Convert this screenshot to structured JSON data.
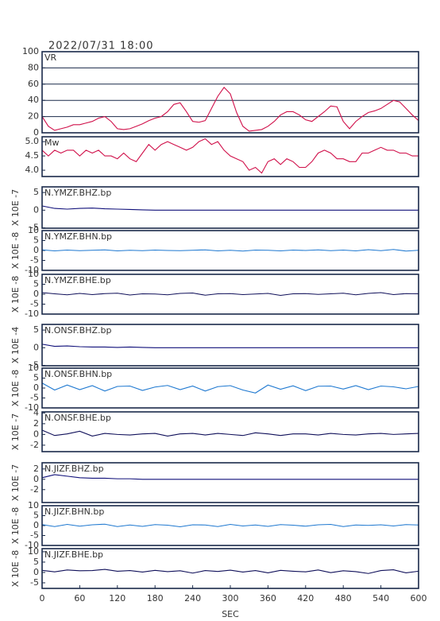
{
  "chart_data": [
    {
      "type": "line",
      "title": "2022/07/31 18:00",
      "xlim": [
        0,
        600
      ],
      "ylim": [
        0,
        100
      ],
      "yticks": [
        0,
        20,
        40,
        60,
        80,
        100
      ],
      "grid": true,
      "x": [
        0,
        10,
        20,
        30,
        40,
        50,
        60,
        70,
        80,
        90,
        100,
        110,
        120,
        130,
        140,
        150,
        160,
        170,
        180,
        190,
        200,
        210,
        220,
        230,
        240,
        250,
        260,
        270,
        280,
        290,
        300,
        310,
        320,
        330,
        340,
        350,
        360,
        370,
        380,
        390,
        400,
        410,
        420,
        430,
        440,
        450,
        460,
        470,
        480,
        490,
        500,
        510,
        520,
        530,
        540,
        550,
        560,
        570,
        580,
        590,
        600
      ],
      "series": [
        {
          "name": "VR",
          "color": "#d0104a",
          "values": [
            20,
            8,
            3,
            5,
            7,
            10,
            10,
            12,
            14,
            18,
            20,
            14,
            5,
            4,
            5,
            8,
            11,
            15,
            18,
            20,
            26,
            35,
            37,
            26,
            14,
            13,
            15,
            30,
            45,
            56,
            48,
            25,
            8,
            2,
            3,
            4,
            8,
            14,
            22,
            26,
            26,
            22,
            16,
            14,
            20,
            26,
            33,
            32,
            14,
            5,
            14,
            20,
            25,
            27,
            30,
            35,
            40,
            38,
            30,
            22,
            15
          ]
        }
      ]
    },
    {
      "type": "line",
      "xlim": [
        0,
        600
      ],
      "ylim": [
        3.78,
        5.17
      ],
      "yticks": [
        {
          "value": 4,
          "label": "4.0"
        },
        {
          "value": 4.5,
          "label": "4.5"
        },
        {
          "value": 5,
          "label": "5.0"
        }
      ],
      "x": [
        0,
        10,
        20,
        30,
        40,
        50,
        60,
        70,
        80,
        90,
        100,
        110,
        120,
        130,
        140,
        150,
        160,
        170,
        180,
        190,
        200,
        210,
        220,
        230,
        240,
        250,
        260,
        270,
        280,
        290,
        300,
        310,
        320,
        330,
        340,
        350,
        360,
        370,
        380,
        390,
        400,
        410,
        420,
        430,
        440,
        450,
        460,
        470,
        480,
        490,
        500,
        510,
        520,
        530,
        540,
        550,
        560,
        570,
        580,
        590,
        600
      ],
      "series": [
        {
          "name": "Mw",
          "color": "#d0104a",
          "values": [
            4.7,
            4.5,
            4.7,
            4.6,
            4.7,
            4.7,
            4.5,
            4.7,
            4.6,
            4.7,
            4.5,
            4.5,
            4.4,
            4.6,
            4.4,
            4.3,
            4.6,
            4.9,
            4.7,
            4.9,
            5.0,
            4.9,
            4.8,
            4.7,
            4.8,
            5.0,
            5.1,
            4.9,
            5.0,
            4.7,
            4.5,
            4.4,
            4.3,
            4.0,
            4.1,
            3.9,
            4.3,
            4.4,
            4.2,
            4.4,
            4.3,
            4.1,
            4.1,
            4.3,
            4.6,
            4.7,
            4.6,
            4.4,
            4.4,
            4.3,
            4.3,
            4.6,
            4.6,
            4.7,
            4.8,
            4.7,
            4.7,
            4.6,
            4.6,
            4.5,
            4.5
          ]
        }
      ]
    },
    {
      "type": "line",
      "ylabel": "X 10E -7",
      "xlim": [
        0,
        600
      ],
      "ylim": [
        -5.1,
        6.6
      ],
      "yticks": [
        -5,
        0,
        5
      ],
      "x": [
        0,
        20,
        40,
        60,
        80,
        100,
        120,
        140,
        160,
        180,
        200,
        220,
        240,
        260,
        280,
        300,
        320,
        340,
        360,
        380,
        400,
        420,
        440,
        460,
        480,
        500,
        520,
        540,
        560,
        580,
        600
      ],
      "series": [
        {
          "name": "N.YMZF.BHZ.bp",
          "color": "#10107a",
          "values": [
            1.2,
            0.5,
            0.3,
            0.5,
            0.6,
            0.4,
            0.3,
            0.2,
            0.1,
            0,
            0,
            0,
            0,
            0,
            0,
            0,
            0,
            0,
            0,
            0,
            0,
            0,
            0,
            0,
            0,
            0,
            0,
            0,
            0,
            0,
            0
          ]
        }
      ]
    },
    {
      "type": "line",
      "ylabel": "X 10E -8",
      "xlim": [
        0,
        600
      ],
      "ylim": [
        -10,
        10
      ],
      "yticks": [
        -10,
        -5,
        0,
        5,
        10
      ],
      "x": [
        0,
        20,
        40,
        60,
        80,
        100,
        120,
        140,
        160,
        180,
        200,
        220,
        240,
        260,
        280,
        300,
        320,
        340,
        360,
        380,
        400,
        420,
        440,
        460,
        480,
        500,
        520,
        540,
        560,
        580,
        600
      ],
      "series": [
        {
          "name": "N.YMZF.BHN.bp",
          "color": "#1e78d0",
          "values": [
            0.3,
            -0.2,
            0.2,
            -0.1,
            0.1,
            0.3,
            -0.2,
            0.1,
            -0.1,
            0.2,
            0,
            -0.1,
            0.1,
            0.3,
            -0.2,
            0.1,
            -0.3,
            0.2,
            0.1,
            -0.2,
            0.2,
            0,
            0.3,
            -0.1,
            0.2,
            -0.2,
            0.4,
            -0.1,
            0.5,
            -0.3,
            0.1
          ]
        }
      ]
    },
    {
      "type": "line",
      "ylabel": "X 10E -8",
      "xlim": [
        0,
        600
      ],
      "ylim": [
        -10,
        10
      ],
      "yticks": [
        -10,
        -5,
        0,
        5,
        10
      ],
      "x": [
        0,
        20,
        40,
        60,
        80,
        100,
        120,
        140,
        160,
        180,
        200,
        220,
        240,
        260,
        280,
        300,
        320,
        340,
        360,
        380,
        400,
        420,
        440,
        460,
        480,
        500,
        520,
        540,
        560,
        580,
        600
      ],
      "series": [
        {
          "name": "N.YMZF.BHE.bp",
          "color": "#10105a",
          "values": [
            0.8,
            0.2,
            -0.3,
            0.4,
            -0.2,
            0.3,
            0.5,
            -0.4,
            0.2,
            0.1,
            -0.3,
            0.4,
            0.6,
            -0.5,
            0.2,
            0.3,
            -0.2,
            0.1,
            0.4,
            -0.6,
            0.2,
            0.3,
            -0.1,
            0.2,
            0.5,
            -0.3,
            0.4,
            0.8,
            -0.2,
            0.3,
            0.2
          ]
        }
      ]
    },
    {
      "type": "line",
      "ylabel": "X 10E -4",
      "xlim": [
        0,
        600
      ],
      "ylim": [
        -5.1,
        6.6
      ],
      "yticks": [
        -5,
        0,
        5
      ],
      "x": [
        0,
        20,
        40,
        60,
        80,
        100,
        120,
        140,
        160,
        180,
        200,
        220,
        240,
        260,
        280,
        300,
        320,
        340,
        360,
        380,
        400,
        420,
        440,
        460,
        480,
        500,
        520,
        540,
        560,
        580,
        600
      ],
      "series": [
        {
          "name": "N.ONSF.BHZ.bp",
          "color": "#10107a",
          "values": [
            1.0,
            0.4,
            0.5,
            0.3,
            0.2,
            0.2,
            0.1,
            0.2,
            0.1,
            0,
            0,
            0,
            0,
            0,
            0,
            0,
            0,
            0,
            0,
            0,
            0,
            0,
            0,
            0,
            0,
            0,
            0,
            0,
            0,
            0,
            0
          ]
        }
      ]
    },
    {
      "type": "line",
      "ylabel": "X 10E -8",
      "xlim": [
        0,
        600
      ],
      "ylim": [
        -10,
        10
      ],
      "yticks": [
        -10,
        -5,
        0,
        5,
        10
      ],
      "x": [
        0,
        20,
        40,
        60,
        80,
        100,
        120,
        140,
        160,
        180,
        200,
        220,
        240,
        260,
        280,
        300,
        320,
        340,
        360,
        380,
        400,
        420,
        440,
        460,
        480,
        500,
        520,
        540,
        560,
        580,
        600
      ],
      "series": [
        {
          "name": "N.ONSF.BHN.bp",
          "color": "#1e78d0",
          "values": [
            2.5,
            -1.0,
            1.5,
            -0.8,
            1.2,
            -1.5,
            0.8,
            1.0,
            -1.2,
            0.5,
            1.3,
            -0.8,
            1.0,
            -1.5,
            0.7,
            1.2,
            -1.0,
            -2.5,
            1.5,
            -0.6,
            1.1,
            -1.3,
            0.9,
            1.0,
            -0.5,
            1.2,
            -0.8,
            1.0,
            0.6,
            -0.4,
            0.8
          ]
        }
      ]
    },
    {
      "type": "line",
      "ylabel": "X 10E -7",
      "xlim": [
        0,
        600
      ],
      "ylim": [
        -3.2,
        4.2
      ],
      "yticks": [
        -2,
        0,
        2,
        4
      ],
      "x": [
        0,
        20,
        40,
        60,
        80,
        100,
        120,
        140,
        160,
        180,
        200,
        220,
        240,
        260,
        280,
        300,
        320,
        340,
        360,
        380,
        400,
        420,
        440,
        460,
        480,
        500,
        520,
        540,
        560,
        580,
        600
      ],
      "series": [
        {
          "name": "N.ONSF.BHE.bp",
          "color": "#10105a",
          "values": [
            0.8,
            -0.2,
            0.1,
            0.6,
            -0.3,
            0.2,
            0,
            -0.1,
            0.1,
            0.2,
            -0.3,
            0.1,
            0.2,
            -0.1,
            0.2,
            0,
            -0.2,
            0.3,
            0.1,
            -0.2,
            0.1,
            0.1,
            -0.1,
            0.2,
            0,
            -0.1,
            0.1,
            0.2,
            0,
            0.1,
            0.2
          ]
        }
      ]
    },
    {
      "type": "line",
      "ylabel": "X 10E -7",
      "xlim": [
        0,
        600
      ],
      "ylim": [
        -4.5,
        3.2
      ],
      "yticks": [
        -2,
        0,
        2
      ],
      "x": [
        0,
        20,
        40,
        60,
        80,
        100,
        120,
        140,
        160,
        180,
        200,
        220,
        240,
        260,
        280,
        300,
        320,
        340,
        360,
        380,
        400,
        420,
        440,
        460,
        480,
        500,
        520,
        540,
        560,
        580,
        600
      ],
      "series": [
        {
          "name": "N.JIZF.BHZ.bp",
          "color": "#10107a",
          "values": [
            0.3,
            0.9,
            0.6,
            0.3,
            0.2,
            0.2,
            0.1,
            0.1,
            0,
            0,
            0,
            0,
            0,
            0,
            0,
            0,
            0,
            0,
            0,
            0,
            0,
            0,
            0,
            0,
            0,
            0,
            0,
            0,
            0,
            0,
            0
          ]
        }
      ]
    },
    {
      "type": "line",
      "ylabel": "X 10E -8",
      "xlim": [
        0,
        600
      ],
      "ylim": [
        -10,
        10
      ],
      "yticks": [
        -10,
        -5,
        0,
        5,
        10
      ],
      "x": [
        0,
        20,
        40,
        60,
        80,
        100,
        120,
        140,
        160,
        180,
        200,
        220,
        240,
        260,
        280,
        300,
        320,
        340,
        360,
        380,
        400,
        420,
        440,
        460,
        480,
        500,
        520,
        540,
        560,
        580,
        600
      ],
      "series": [
        {
          "name": "N.JIZF.BHN.bp",
          "color": "#1e78d0",
          "values": [
            0.5,
            -0.5,
            0.6,
            -0.3,
            0.4,
            0.7,
            -0.5,
            0.3,
            -0.4,
            0.5,
            0.2,
            -0.6,
            0.4,
            0.3,
            -0.5,
            0.6,
            -0.2,
            0.3,
            -0.4,
            0.5,
            0.2,
            -0.3,
            0.4,
            0.6,
            -0.5,
            0.3,
            0.1,
            0.4,
            -0.2,
            0.5,
            0.3
          ]
        }
      ]
    },
    {
      "type": "line",
      "ylabel": "X 10E -8",
      "xlabel": "SEC",
      "xlim": [
        0,
        600
      ],
      "xticks": [
        0,
        60,
        120,
        180,
        240,
        300,
        360,
        420,
        480,
        540,
        600
      ],
      "ylim": [
        -7.7,
        11.5
      ],
      "yticks": [
        -5,
        0,
        5,
        10
      ],
      "x": [
        0,
        20,
        40,
        60,
        80,
        100,
        120,
        140,
        160,
        180,
        200,
        220,
        240,
        260,
        280,
        300,
        320,
        340,
        360,
        380,
        400,
        420,
        440,
        460,
        480,
        500,
        520,
        540,
        560,
        580,
        600
      ],
      "series": [
        {
          "name": "N.JIZF.BHE.bp",
          "color": "#10105a",
          "values": [
            1.0,
            0.3,
            1.2,
            0.8,
            0.9,
            1.5,
            0.6,
            0.9,
            0.2,
            1.0,
            0.4,
            0.8,
            -0.3,
            0.9,
            0.5,
            1.1,
            0.2,
            0.9,
            -0.2,
            1.0,
            0.6,
            0.3,
            1.2,
            -0.1,
            0.8,
            0.4,
            -0.5,
            0.9,
            1.3,
            -0.2,
            0.6
          ]
        }
      ]
    }
  ]
}
